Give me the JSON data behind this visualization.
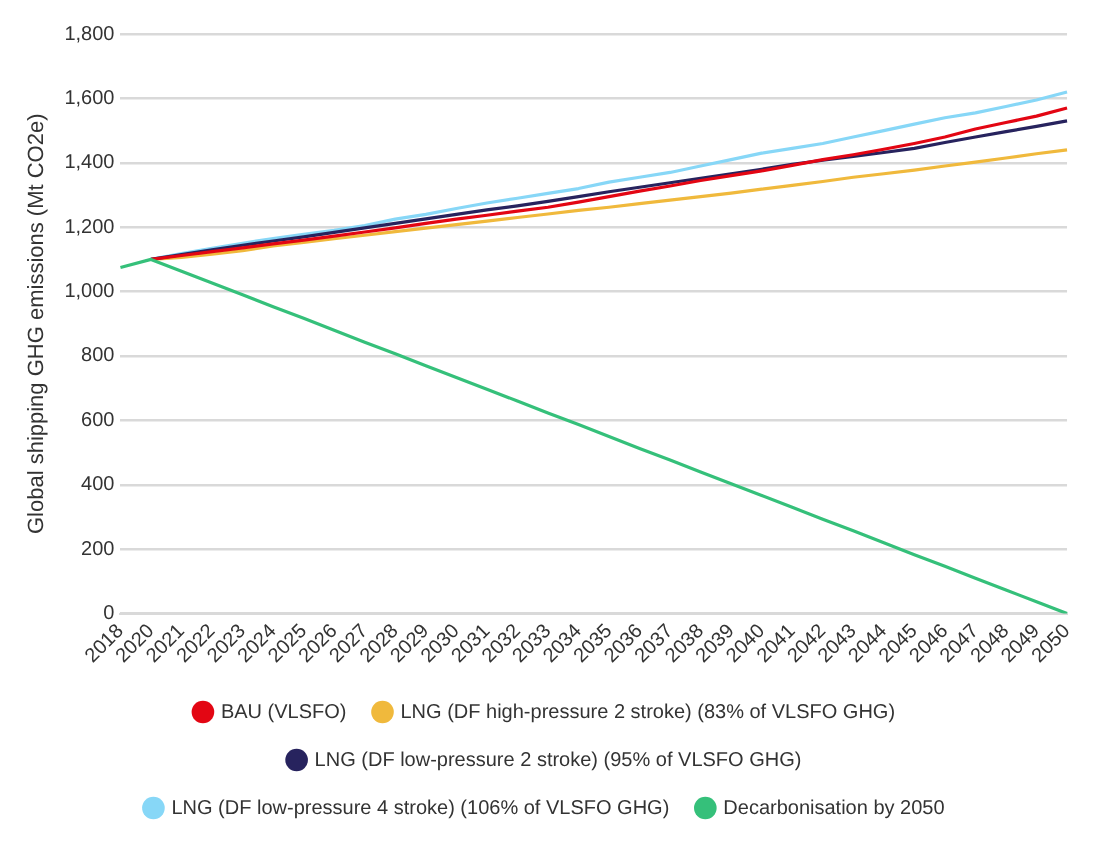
{
  "chart_data": {
    "type": "line",
    "ylabel": "Global shipping GHG emissions (Mt CO2e)",
    "categories": [
      "2018",
      "2020",
      "2021",
      "2022",
      "2023",
      "2024",
      "2025",
      "2026",
      "2027",
      "2028",
      "2029",
      "2030",
      "2031",
      "2032",
      "2033",
      "2034",
      "2035",
      "2036",
      "2037",
      "2038",
      "2039",
      "2040",
      "2041",
      "2042",
      "2043",
      "2044",
      "2045",
      "2046",
      "2047",
      "2048",
      "2049",
      "2050"
    ],
    "series": [
      {
        "name": "BAU (VLSFO)",
        "color": "#e30613",
        "values": [
          null,
          1100,
          1112,
          1124,
          1136,
          1148,
          1160,
          1172,
          1185,
          1198,
          1212,
          1225,
          1237,
          1250,
          1262,
          1278,
          1295,
          1312,
          1328,
          1345,
          1360,
          1375,
          1392,
          1410,
          1425,
          1442,
          1460,
          1480,
          1505,
          1525,
          1545,
          1570
        ]
      },
      {
        "name": "LNG (DF high-pressure 2 stroke) (83% of VLSFO GHG)",
        "color": "#f0b93c",
        "values": [
          null,
          1100,
          1106,
          1116,
          1127,
          1142,
          1153,
          1164,
          1175,
          1186,
          1197,
          1208,
          1219,
          1230,
          1241,
          1252,
          1262,
          1273,
          1284,
          1295,
          1306,
          1318,
          1330,
          1342,
          1355,
          1366,
          1377,
          1390,
          1402,
          1415,
          1428,
          1440
        ]
      },
      {
        "name": "LNG (DF low-pressure 2 stroke) (95% of VLSFO GHG)",
        "color": "#27235e",
        "values": [
          null,
          1100,
          1115,
          1130,
          1144,
          1157,
          1170,
          1184,
          1198,
          1212,
          1226,
          1240,
          1254,
          1266,
          1280,
          1295,
          1310,
          1324,
          1338,
          1352,
          1366,
          1380,
          1395,
          1408,
          1420,
          1432,
          1445,
          1463,
          1480,
          1497,
          1513,
          1530
        ]
      },
      {
        "name": "LNG (DF low-pressure 4 stroke) (106% of VLSFO GHG)",
        "color": "#87d7f7",
        "values": [
          null,
          1100,
          1118,
          1134,
          1150,
          1165,
          1178,
          1190,
          1205,
          1225,
          1240,
          1258,
          1275,
          1290,
          1305,
          1320,
          1340,
          1355,
          1370,
          1390,
          1410,
          1430,
          1445,
          1460,
          1480,
          1500,
          1520,
          1540,
          1555,
          1575,
          1595,
          1620
        ]
      },
      {
        "name": "Decarbonisation by 2050",
        "color": "#35c07a",
        "values": [
          1075,
          1100,
          1063,
          1027,
          990,
          953,
          917,
          880,
          843,
          807,
          770,
          733,
          697,
          660,
          623,
          587,
          550,
          513,
          477,
          440,
          403,
          367,
          330,
          293,
          257,
          220,
          183,
          147,
          110,
          73,
          37,
          0
        ]
      }
    ],
    "ylim": [
      0,
      1800
    ],
    "yticks": [
      0,
      200,
      400,
      600,
      800,
      {
        "value": 1000,
        "label": "1,000"
      },
      {
        "value": 1200,
        "label": "1,200"
      },
      {
        "value": 1400,
        "label": "1,400"
      },
      {
        "value": 1600,
        "label": "1,600"
      },
      {
        "value": 1800,
        "label": "1,800"
      }
    ],
    "grid": "y",
    "legend": "bottom",
    "marker": "none",
    "line_style": "solid"
  }
}
